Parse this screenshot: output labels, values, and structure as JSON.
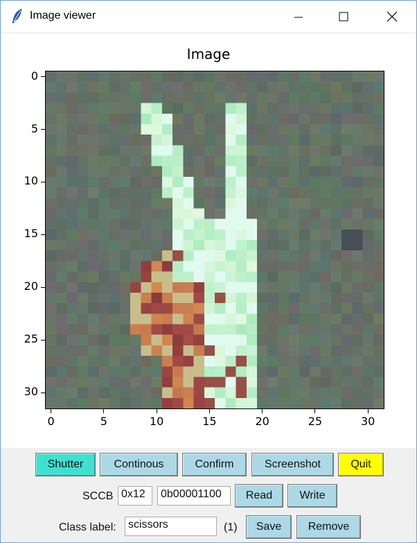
{
  "window": {
    "title": "Image viewer",
    "icon": "feather-icon",
    "controls": [
      "minimize-icon",
      "maximize-icon",
      "close-icon"
    ]
  },
  "chart_data": {
    "type": "heatmap",
    "title": "Image",
    "xlabel": "",
    "ylabel": "",
    "xticks": [
      0,
      5,
      10,
      15,
      20,
      25,
      30
    ],
    "yticks": [
      0,
      5,
      10,
      15,
      20,
      25,
      30
    ],
    "xlim": [
      -0.5,
      31.5
    ],
    "ylim": [
      31.5,
      -0.5
    ],
    "width": 32,
    "height": 32,
    "description_scene": "hand showing V sign (scissors)"
  },
  "controls": {
    "shutter": "Shutter",
    "continous": "Continous",
    "confirm": "Confirm",
    "screenshot": "Screenshot",
    "quit": "Quit",
    "sccb_label": "SCCB",
    "sccb_addr": "0x12",
    "sccb_value": "0b00001100",
    "read": "Read",
    "write": "Write",
    "class_label": "Class label:",
    "class_value": "scissors",
    "class_count": "(1)",
    "save": "Save",
    "remove": "Remove"
  },
  "colors": {
    "shutter": "#40e0d0",
    "quit": "#ffff00",
    "button": "#add8e6"
  }
}
